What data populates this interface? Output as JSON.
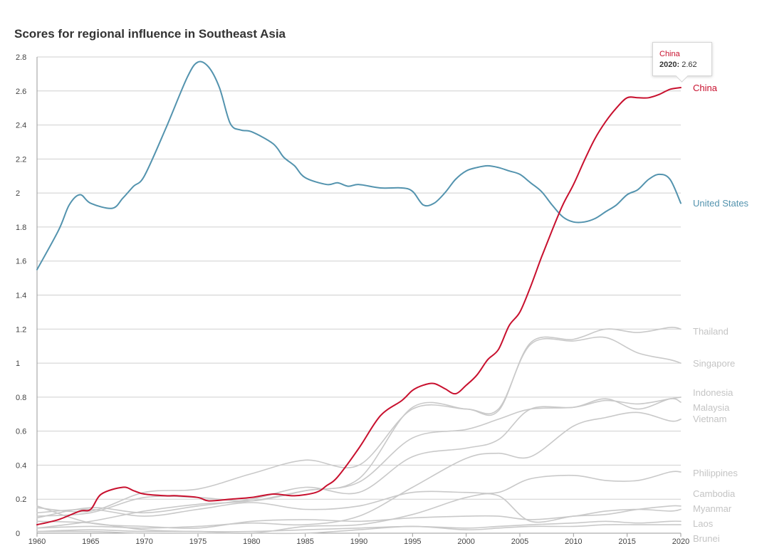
{
  "chart_data": {
    "type": "line",
    "title": "Scores for regional influence in Southeast Asia",
    "xlabel": "",
    "ylabel": "",
    "xlim": [
      1960,
      2020
    ],
    "ylim": [
      0,
      2.8
    ],
    "x_ticks": [
      "1960",
      "1965",
      "1970",
      "1975",
      "1980",
      "1985",
      "1990",
      "1995",
      "2000",
      "2005",
      "2010",
      "2015",
      "2020"
    ],
    "y_ticks": [
      "0",
      "0.2",
      "0.4",
      "0.6",
      "0.8",
      "1",
      "1.2",
      "1.4",
      "1.6",
      "1.8",
      "2",
      "2.2",
      "2.4",
      "2.6",
      "2.8"
    ],
    "grid": "horizontal",
    "series": [
      {
        "name": "Thailand",
        "color": "#c9c9c9",
        "x": [
          1960,
          1965,
          1970,
          1975,
          1980,
          1985,
          1990,
          1995,
          2000,
          2003,
          2006,
          2010,
          2013,
          2016,
          2019,
          2020
        ],
        "values": [
          0.1,
          0.12,
          0.21,
          0.21,
          0.19,
          0.25,
          0.32,
          0.74,
          0.73,
          0.72,
          1.12,
          1.14,
          1.2,
          1.18,
          1.21,
          1.2
        ]
      },
      {
        "name": "Singapore",
        "color": "#c9c9c9",
        "x": [
          1960,
          1965,
          1970,
          1975,
          1980,
          1985,
          1990,
          1995,
          2000,
          2003,
          2006,
          2010,
          2013,
          2016,
          2019,
          2020
        ],
        "values": [
          0.15,
          0.13,
          0.24,
          0.26,
          0.35,
          0.43,
          0.4,
          0.73,
          0.73,
          0.73,
          1.11,
          1.13,
          1.15,
          1.06,
          1.02,
          1.0
        ]
      },
      {
        "name": "Indonesia",
        "color": "#c9c9c9",
        "x": [
          1960,
          1965,
          1970,
          1975,
          1980,
          1985,
          1990,
          1995,
          2000,
          2003,
          2006,
          2010,
          2013,
          2016,
          2019,
          2020
        ],
        "values": [
          0.03,
          0.07,
          0.13,
          0.17,
          0.19,
          0.25,
          0.3,
          0.56,
          0.61,
          0.67,
          0.73,
          0.74,
          0.78,
          0.76,
          0.79,
          0.8
        ]
      },
      {
        "name": "Malaysia",
        "color": "#c9c9c9",
        "x": [
          1960,
          1965,
          1970,
          1975,
          1980,
          1985,
          1990,
          1995,
          2000,
          2003,
          2006,
          2010,
          2013,
          2016,
          2019,
          2020
        ],
        "values": [
          0.09,
          0.15,
          0.12,
          0.16,
          0.2,
          0.27,
          0.24,
          0.45,
          0.5,
          0.55,
          0.73,
          0.74,
          0.79,
          0.73,
          0.79,
          0.77
        ]
      },
      {
        "name": "Vietnam",
        "color": "#c9c9c9",
        "x": [
          1960,
          1965,
          1970,
          1975,
          1980,
          1985,
          1990,
          1995,
          2000,
          2003,
          2006,
          2010,
          2013,
          2016,
          2019,
          2020
        ],
        "values": [
          0.03,
          0.04,
          0.03,
          0.04,
          0.06,
          0.05,
          0.1,
          0.27,
          0.44,
          0.47,
          0.45,
          0.63,
          0.68,
          0.71,
          0.66,
          0.67
        ]
      },
      {
        "name": "Philippines",
        "color": "#c9c9c9",
        "x": [
          1960,
          1965,
          1970,
          1975,
          1980,
          1985,
          1990,
          1995,
          2000,
          2003,
          2006,
          2010,
          2013,
          2016,
          2019,
          2020
        ],
        "values": [
          0.12,
          0.14,
          0.1,
          0.14,
          0.18,
          0.14,
          0.16,
          0.24,
          0.24,
          0.24,
          0.32,
          0.34,
          0.31,
          0.31,
          0.36,
          0.36
        ]
      },
      {
        "name": "Cambodia",
        "color": "#c9c9c9",
        "x": [
          1960,
          1965,
          1970,
          1975,
          1980,
          1985,
          1990,
          1995,
          2000,
          2003,
          2006,
          2010,
          2013,
          2016,
          2019,
          2020
        ],
        "values": [
          0.01,
          0.02,
          0.01,
          0.01,
          0.0,
          0.04,
          0.05,
          0.11,
          0.21,
          0.22,
          0.07,
          0.1,
          0.11,
          0.14,
          0.16,
          0.16
        ]
      },
      {
        "name": "Myanmar",
        "color": "#c9c9c9",
        "x": [
          1960,
          1965,
          1970,
          1975,
          1980,
          1985,
          1990,
          1995,
          2000,
          2003,
          2006,
          2010,
          2013,
          2016,
          2019,
          2020
        ],
        "values": [
          0.16,
          0.06,
          0.04,
          0.03,
          0.07,
          0.08,
          0.07,
          0.09,
          0.1,
          0.1,
          0.08,
          0.1,
          0.13,
          0.14,
          0.13,
          0.14
        ]
      },
      {
        "name": "Laos",
        "color": "#c9c9c9",
        "x": [
          1960,
          1965,
          1970,
          1975,
          1980,
          1985,
          1990,
          1995,
          2000,
          2003,
          2006,
          2010,
          2013,
          2016,
          2019,
          2020
        ],
        "values": [
          0.07,
          0.06,
          0.02,
          0.01,
          0.01,
          0.02,
          0.03,
          0.04,
          0.03,
          0.04,
          0.05,
          0.06,
          0.07,
          0.06,
          0.07,
          0.07
        ]
      },
      {
        "name": "Brunei",
        "color": "#c9c9c9",
        "x": [
          1960,
          1965,
          1970,
          1975,
          1980,
          1985,
          1990,
          1995,
          2000,
          2003,
          2006,
          2010,
          2013,
          2016,
          2019,
          2020
        ],
        "values": [
          0.01,
          0.01,
          0.0,
          0.0,
          0.0,
          0.0,
          0.02,
          0.04,
          0.02,
          0.03,
          0.04,
          0.04,
          0.05,
          0.05,
          0.05,
          0.05
        ]
      },
      {
        "name": "United States",
        "color": "#5393ae",
        "x": [
          1960,
          1962,
          1963,
          1964,
          1965,
          1967,
          1968,
          1969,
          1970,
          1972,
          1974,
          1975,
          1976,
          1977,
          1978,
          1979,
          1980,
          1982,
          1983,
          1984,
          1985,
          1987,
          1988,
          1989,
          1990,
          1992,
          1994,
          1995,
          1996,
          1997,
          1998,
          1999,
          2000,
          2001,
          2002,
          2003,
          2004,
          2005,
          2006,
          2007,
          2008,
          2009,
          2010,
          2011,
          2012,
          2013,
          2014,
          2015,
          2016,
          2017,
          2018,
          2019,
          2020
        ],
        "values": [
          1.55,
          1.78,
          1.93,
          1.99,
          1.94,
          1.91,
          1.97,
          2.04,
          2.1,
          2.38,
          2.68,
          2.77,
          2.74,
          2.62,
          2.41,
          2.37,
          2.36,
          2.29,
          2.21,
          2.16,
          2.09,
          2.05,
          2.06,
          2.04,
          2.05,
          2.03,
          2.03,
          2.01,
          1.93,
          1.94,
          2.0,
          2.08,
          2.13,
          2.15,
          2.16,
          2.15,
          2.13,
          2.11,
          2.06,
          2.01,
          1.93,
          1.86,
          1.83,
          1.83,
          1.85,
          1.89,
          1.93,
          1.99,
          2.02,
          2.08,
          2.11,
          2.08,
          1.94
        ]
      },
      {
        "name": "China",
        "color": "#c8102e",
        "x": [
          1960,
          1962,
          1964,
          1965,
          1966,
          1968,
          1969,
          1970,
          1972,
          1973,
          1975,
          1976,
          1978,
          1980,
          1982,
          1984,
          1986,
          1987,
          1988,
          1990,
          1992,
          1994,
          1995,
          1996,
          1997,
          1998,
          1999,
          2000,
          2001,
          2002,
          2003,
          2004,
          2005,
          2006,
          2007,
          2008,
          2009,
          2010,
          2011,
          2012,
          2013,
          2014,
          2015,
          2016,
          2017,
          2018,
          2019,
          2020
        ],
        "values": [
          0.05,
          0.08,
          0.13,
          0.14,
          0.23,
          0.27,
          0.25,
          0.23,
          0.22,
          0.22,
          0.21,
          0.19,
          0.2,
          0.21,
          0.23,
          0.22,
          0.24,
          0.28,
          0.33,
          0.5,
          0.69,
          0.78,
          0.84,
          0.87,
          0.88,
          0.85,
          0.82,
          0.87,
          0.93,
          1.02,
          1.08,
          1.22,
          1.3,
          1.45,
          1.62,
          1.78,
          1.93,
          2.05,
          2.19,
          2.32,
          2.42,
          2.5,
          2.56,
          2.56,
          2.56,
          2.58,
          2.61,
          2.62
        ]
      }
    ],
    "annotations": [
      {
        "series": "China",
        "x": 2020,
        "text": "2020: 2.62"
      }
    ]
  },
  "tooltip": {
    "series_name": "China",
    "year_label": "2020:",
    "value_label": "2.62"
  }
}
